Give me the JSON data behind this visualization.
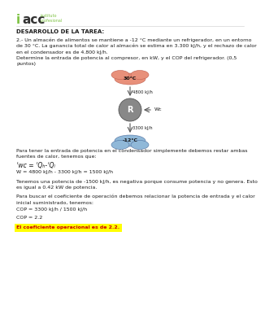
{
  "bg_color": "#ffffff",
  "logo_i_color": "#7dc242",
  "logo_acc_color": "#333333",
  "logo_sub_color": "#7dc242",
  "section_title": "DESARROLLO DE LA TAREA:",
  "problem_text": "2.- Un almacén de alimentos se mantiene a -12 °C mediante un refrigerador, en un entorno\nde 30 °C. La ganancia total de calor al almacén se estima en 3.300 kJ/h, y el rechazo de calor\nen el condensador es de 4.800 kJ/h.\nDetermine la entrada de potencia al compresor, en kW, y el COP del refrigerador. (0,5\npuntos)",
  "diagram_top_temp": "30°C",
  "diagram_top_heat": "4800 kJ/h",
  "diagram_center_label": "R",
  "diagram_right_label": "Wᴄ",
  "diagram_bottom_heat": "3300 kJ/h",
  "diagram_bottom_temp": "-12°C",
  "top_color": "#e8907a",
  "bottom_color": "#90b8d8",
  "center_color": "#888888",
  "solution_text1": "Para tener la entrada de potencia en el condensador simplemente debemos restar ambas\nfuentes de calor, tenemos que:",
  "formula_line": "ʿwᴄ = ʿQₕ-ʿQₗ",
  "calc_line": "W = 4800 kJ/h - 3300 kJ/h = 1500 kJ/h",
  "explanation_text": "Tenemos una potencia de -1500 kJ/h, es negativa porque consume potencia y no genera. Esto\nes igual a 0.42 kW de potencia.",
  "solution_text2": "Para buscar el coeficiente de operación debemos relacionar la potencia de entrada y el calor\ninicial suministrado, tenemos:",
  "cop_calc": "COP = 3300 kJ/h / 1500 kJ/h",
  "cop_result": "COP = 2.2",
  "highlight_text": "El coeficiente operacional es de 2.2.",
  "highlight_color": "#ffff00",
  "text_color": "#1a1a1a"
}
